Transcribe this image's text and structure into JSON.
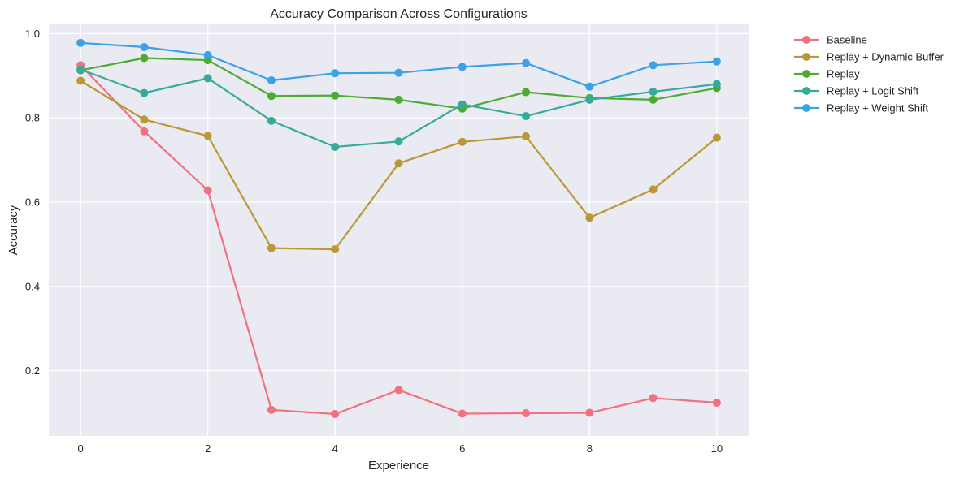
{
  "chart_data": {
    "type": "line",
    "title": "Accuracy Comparison Across Configurations",
    "xlabel": "Experience",
    "ylabel": "Accuracy",
    "x": [
      0,
      1,
      2,
      3,
      4,
      5,
      6,
      7,
      8,
      9,
      10
    ],
    "xlim": [
      -0.5,
      10.5
    ],
    "ylim": [
      0.045,
      1.022
    ],
    "xticks": [
      0,
      2,
      4,
      6,
      8,
      10
    ],
    "yticks": [
      0.2,
      0.4,
      0.6,
      0.8,
      1.0
    ],
    "xtick_labels": [
      "0",
      "2",
      "4",
      "6",
      "8",
      "10"
    ],
    "ytick_labels": [
      "0.2",
      "0.4",
      "0.6",
      "0.8",
      "1.0"
    ],
    "grid": true,
    "legend_position": "outside-top-right",
    "background": "#eaeaf2",
    "series": [
      {
        "name": "Baseline",
        "color": "#f0717f",
        "values": [
          0.925,
          0.768,
          0.628,
          0.107,
          0.097,
          0.154,
          0.098,
          0.099,
          0.1,
          0.135,
          0.124
        ]
      },
      {
        "name": "Replay + Dynamic Buffer",
        "color": "#bb9836",
        "values": [
          0.888,
          0.796,
          0.757,
          0.491,
          0.488,
          0.692,
          0.743,
          0.756,
          0.563,
          0.63,
          0.753
        ]
      },
      {
        "name": "Replay",
        "color": "#4eab32",
        "values": [
          0.913,
          0.942,
          0.937,
          0.852,
          0.853,
          0.843,
          0.822,
          0.861,
          0.847,
          0.843,
          0.871
        ]
      },
      {
        "name": "Replay + Logit Shift",
        "color": "#36ab9c",
        "values": [
          0.915,
          0.859,
          0.894,
          0.793,
          0.731,
          0.744,
          0.832,
          0.804,
          0.843,
          0.862,
          0.88
        ]
      },
      {
        "name": "Replay + Weight Shift",
        "color": "#3ba2e8",
        "values": [
          0.978,
          0.968,
          0.949,
          0.889,
          0.906,
          0.907,
          0.921,
          0.93,
          0.874,
          0.925,
          0.934
        ]
      }
    ]
  }
}
